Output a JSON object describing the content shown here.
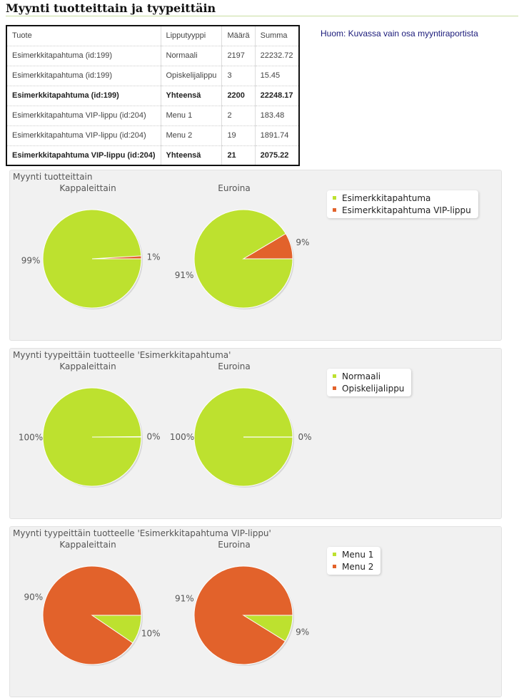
{
  "page": {
    "title": "Myynti tuotteittain ja tyypeittäin",
    "note": "Huom: Kuvassa vain osa myyntiraportista"
  },
  "table": {
    "headers": [
      "Tuote",
      "Lipputyyppi",
      "Määrä",
      "Summa"
    ],
    "rows": [
      {
        "product": "Esimerkkitapahtuma (id:199)",
        "type": "Normaali",
        "qty": "2197",
        "sum": "22232.72",
        "total": false
      },
      {
        "product": "Esimerkkitapahtuma (id:199)",
        "type": "Opiskelijalippu",
        "qty": "3",
        "sum": "15.45",
        "total": false
      },
      {
        "product": "Esimerkkitapahtuma (id:199)",
        "type": "Yhteensä",
        "qty": "2200",
        "sum": "22248.17",
        "total": true
      },
      {
        "product": "Esimerkkitapahtuma VIP-lippu (id:204)",
        "type": "Menu 1",
        "qty": "2",
        "sum": "183.48",
        "total": false
      },
      {
        "product": "Esimerkkitapahtuma VIP-lippu (id:204)",
        "type": "Menu 2",
        "qty": "19",
        "sum": "1891.74",
        "total": false
      },
      {
        "product": "Esimerkkitapahtuma VIP-lippu (id:204)",
        "type": "Yhteensä",
        "qty": "21",
        "sum": "2075.22",
        "total": true
      }
    ]
  },
  "colors": {
    "green": "#bde12f",
    "orange": "#e2622b"
  },
  "chart_data": [
    {
      "type": "pie",
      "title": "Myynti tuotteittain",
      "legend": [
        "Esimerkkitapahtuma",
        "Esimerkkitapahtuma VIP-lippu"
      ],
      "legend_position": "right",
      "charts": [
        {
          "subtitle": "Kappaleittain",
          "categories": [
            "Esimerkkitapahtuma",
            "Esimerkkitapahtuma VIP-lippu"
          ],
          "values": [
            2200,
            21
          ],
          "labels": [
            "99%",
            "1%"
          ]
        },
        {
          "subtitle": "Euroina",
          "categories": [
            "Esimerkkitapahtuma",
            "Esimerkkitapahtuma VIP-lippu"
          ],
          "values": [
            22248.17,
            2075.22
          ],
          "labels": [
            "91%",
            "9%"
          ]
        }
      ]
    },
    {
      "type": "pie",
      "title": "Myynti tyypeittäin tuotteelle 'Esimerkkitapahtuma'",
      "legend": [
        "Normaali",
        "Opiskelijalippu"
      ],
      "legend_position": "right",
      "charts": [
        {
          "subtitle": "Kappaleittain",
          "categories": [
            "Normaali",
            "Opiskelijalippu"
          ],
          "values": [
            2197,
            3
          ],
          "labels": [
            "100%",
            "0%"
          ]
        },
        {
          "subtitle": "Euroina",
          "categories": [
            "Normaali",
            "Opiskelijalippu"
          ],
          "values": [
            22232.72,
            15.45
          ],
          "labels": [
            "100%",
            "0%"
          ]
        }
      ]
    },
    {
      "type": "pie",
      "title": "Myynti tyypeittäin tuotteelle 'Esimerkkitapahtuma VIP-lippu'",
      "legend": [
        "Menu 1",
        "Menu 2"
      ],
      "legend_position": "right",
      "charts": [
        {
          "subtitle": "Kappaleittain",
          "categories": [
            "Menu 1",
            "Menu 2"
          ],
          "values": [
            2,
            19
          ],
          "labels": [
            "10%",
            "90%"
          ]
        },
        {
          "subtitle": "Euroina",
          "categories": [
            "Menu 1",
            "Menu 2"
          ],
          "values": [
            183.48,
            1891.74
          ],
          "labels": [
            "9%",
            "91%"
          ]
        }
      ]
    }
  ]
}
